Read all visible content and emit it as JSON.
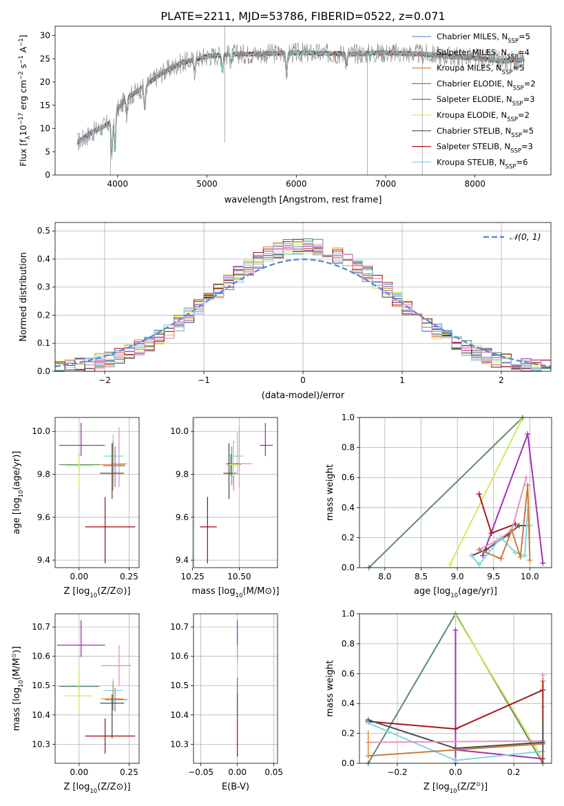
{
  "figure_title": "PLATE=2211, MJD=53786, FIBERID=0522, z=0.071",
  "colors": {
    "cm": "#6A8DD9",
    "sm": "#A2A2A2",
    "km": "#E08A2C",
    "ce": "#5E8A6A",
    "se": "#9C2FB0",
    "ke": "#D6E75C",
    "cs": "#4A4A4A",
    "ss": "#A8161A",
    "ks": "#7FD6E2",
    "pink": "#EC8FC0",
    "orange": "#C97A3A",
    "gaussian": "#5B8AD6"
  },
  "legend_models": [
    {
      "key": "cm",
      "prefix": "Chabrier MILES, N",
      "sub": "SSP",
      "suffix": "=5"
    },
    {
      "key": "sm",
      "prefix": "Salpeter MILES, N",
      "sub": "SSP",
      "suffix": "=4"
    },
    {
      "key": "km",
      "prefix": "Kroupa MILES, N",
      "sub": "SSP",
      "suffix": "=5"
    },
    {
      "key": "ce",
      "prefix": "Chabrier ELODIE, N",
      "sub": "SSP",
      "suffix": "=2"
    },
    {
      "key": "se",
      "prefix": "Salpeter ELODIE, N",
      "sub": "SSP",
      "suffix": "=3"
    },
    {
      "key": "ke",
      "prefix": "Kroupa ELODIE, N",
      "sub": "SSP",
      "suffix": "=2"
    },
    {
      "key": "cs",
      "prefix": "Chabrier STELIB, N",
      "sub": "SSP",
      "suffix": "=5"
    },
    {
      "key": "ss",
      "prefix": "Salpeter STELIB, N",
      "sub": "SSP",
      "suffix": "=3"
    },
    {
      "key": "ks",
      "prefix": "Kroupa STELIB, N",
      "sub": "SSP",
      "suffix": "=6"
    }
  ],
  "chart_data": [
    {
      "type": "line",
      "panel": "spectrum",
      "xlabel": "wavelength [Angstrom, rest frame]",
      "ylabel_parts": [
        "Flux [f",
        "λ",
        "10",
        "−17",
        " erg cm",
        "−2",
        " s",
        "−1",
        " A",
        "−1",
        "]"
      ],
      "xlim": [
        3300,
        8850
      ],
      "ylim": [
        0,
        32
      ],
      "xticks": [
        4000,
        5000,
        6000,
        7000,
        8000
      ],
      "yticks": [
        0,
        5,
        10,
        15,
        20,
        25,
        30
      ],
      "grid": false,
      "legend": "top-right",
      "continuum": {
        "x": [
          3550,
          3700,
          3900,
          4000,
          4100,
          4300,
          4500,
          4700,
          5000,
          5300,
          5600,
          5900,
          6200,
          6600,
          7000,
          7400,
          7700,
          8000,
          8300,
          8550
        ],
        "y": [
          7,
          9,
          11,
          14,
          16.5,
          19,
          22,
          24,
          25.5,
          26,
          26,
          26.3,
          26.2,
          26,
          26.3,
          26,
          25.5,
          25.2,
          24.5,
          24.8
        ]
      },
      "x_range": [
        3550,
        8550
      ]
    },
    {
      "type": "histogram",
      "panel": "residuals",
      "xlabel": "(data-model)/error",
      "ylabel": "Normed distribution",
      "xlim": [
        -2.5,
        2.5
      ],
      "ylim": [
        0,
        0.53
      ],
      "xticks": [
        -2,
        -1,
        0,
        1,
        2
      ],
      "yticks": [
        0.0,
        0.1,
        0.2,
        0.3,
        0.4,
        0.5
      ],
      "grid": true,
      "legend": "top-right",
      "gaussian_label": "𝒩(0, 1)",
      "bin_width": 0.1
    },
    {
      "type": "errorbar",
      "panel": "Z-age",
      "xlabel_parts": [
        "Z [log",
        "10",
        "(Z/Z",
        "⊙",
        ")]"
      ],
      "ylabel_parts": [
        "age  [log",
        "10",
        "(age/yr)]"
      ],
      "xlim": [
        -0.12,
        0.3
      ],
      "ylim": [
        9.365,
        10.065
      ],
      "xticks": [
        0.0,
        0.25
      ],
      "yticks": [
        9.4,
        9.6,
        9.8,
        10.0
      ],
      "grid": true,
      "points": [
        {
          "c": "se",
          "x": 0.01,
          "xe": [
            0.11,
            0.12
          ],
          "y": 9.935,
          "ye": [
            0.05,
            0.105
          ]
        },
        {
          "c": "pink",
          "x": 0.2,
          "xe": [
            0.04,
            0.04
          ],
          "y": 9.85,
          "ye": [
            0.11,
            0.17
          ]
        },
        {
          "c": "ks",
          "x": 0.17,
          "xe": [
            0.05,
            0.05
          ],
          "y": 9.885,
          "ye": [
            0.09,
            0.1
          ]
        },
        {
          "c": "km",
          "x": 0.17,
          "xe": [
            0.07,
            0.06
          ],
          "y": 9.845,
          "ye": [
            0.12,
            0.11
          ]
        },
        {
          "c": "cm",
          "x": 0.18,
          "xe": [
            0.06,
            0.05
          ],
          "y": 9.84,
          "ye": [
            0.1,
            0.09
          ]
        },
        {
          "c": "cs",
          "x": 0.165,
          "xe": [
            0.06,
            0.06
          ],
          "y": 9.805,
          "ye": [
            0.12,
            0.14
          ]
        },
        {
          "c": "ce",
          "x": 0.0,
          "xe": [
            0.1,
            0.1
          ],
          "y": 9.845,
          "ye": [
            0.05,
            0.05
          ]
        },
        {
          "c": "ke",
          "x": 0.0,
          "xe": [
            0.07,
            0.07
          ],
          "y": 9.84,
          "ye": [
            0.1,
            0.05
          ]
        },
        {
          "c": "ss",
          "x": 0.13,
          "xe": [
            0.1,
            0.15
          ],
          "y": 9.555,
          "ye": [
            0.17,
            0.14
          ]
        }
      ]
    },
    {
      "type": "errorbar",
      "panel": "mass-age",
      "xlabel_parts": [
        "mass [log",
        "10",
        "(M/M",
        "⊙",
        ")]"
      ],
      "ylabel_parts": [],
      "xlim": [
        10.255,
        10.705
      ],
      "ylim": [
        9.365,
        10.065
      ],
      "xticks": [
        10.25,
        10.5
      ],
      "yticks": [
        9.4,
        9.6,
        9.8,
        10.0
      ],
      "grid": true,
      "points": [
        {
          "c": "se",
          "x": 10.64,
          "xe": [
            0.03,
            0.04
          ],
          "y": 9.935,
          "ye": [
            0.05,
            0.105
          ]
        },
        {
          "c": "pink",
          "x": 10.5,
          "xe": [
            0.07,
            0.07
          ],
          "y": 9.85,
          "ye": [
            0.11,
            0.17
          ]
        },
        {
          "c": "ks",
          "x": 10.49,
          "xe": [
            0.03,
            0.03
          ],
          "y": 9.885,
          "ye": [
            0.09,
            0.11
          ]
        },
        {
          "c": "km",
          "x": 10.47,
          "xe": [
            0.03,
            0.04
          ],
          "y": 9.845,
          "ye": [
            0.12,
            0.11
          ]
        },
        {
          "c": "cm",
          "x": 10.46,
          "xe": [
            0.03,
            0.04
          ],
          "y": 9.85,
          "ye": [
            0.1,
            0.08
          ]
        },
        {
          "c": "cs",
          "x": 10.445,
          "xe": [
            0.03,
            0.04
          ],
          "y": 9.805,
          "ye": [
            0.12,
            0.14
          ]
        },
        {
          "c": "ce",
          "x": 10.455,
          "xe": [
            0.02,
            0.03
          ],
          "y": 9.845,
          "ye": [
            0.05,
            0.05
          ]
        },
        {
          "c": "ke",
          "x": 10.47,
          "xe": [
            0.03,
            0.03
          ],
          "y": 9.845,
          "ye": [
            0.05,
            0.1
          ]
        },
        {
          "c": "ss",
          "x": 10.33,
          "xe": [
            0.04,
            0.05
          ],
          "y": 9.555,
          "ye": [
            0.17,
            0.14
          ]
        }
      ]
    },
    {
      "type": "line",
      "panel": "age-weight",
      "xlabel_parts": [
        "age  [log",
        "10",
        "(age/yr)]"
      ],
      "ylabel": "mass weight",
      "xlim": [
        7.65,
        10.3
      ],
      "ylim": [
        0,
        1.0
      ],
      "xticks": [
        8.0,
        8.5,
        9.0,
        9.5,
        10.0
      ],
      "yticks": [
        0.0,
        0.2,
        0.4,
        0.6,
        0.8,
        1.0
      ],
      "grid": true,
      "series": [
        {
          "c": "ce",
          "x": [
            7.78,
            9.9
          ],
          "y": [
            0.0,
            1.0
          ]
        },
        {
          "c": "ke",
          "x": [
            8.9,
            9.88
          ],
          "y": [
            0.02,
            0.98
          ]
        },
        {
          "c": "se",
          "x": [
            9.35,
            9.97,
            10.18
          ],
          "y": [
            0.08,
            0.89,
            0.03
          ]
        },
        {
          "c": "ss",
          "x": [
            9.3,
            9.47,
            9.8
          ],
          "y": [
            0.49,
            0.23,
            0.29
          ]
        },
        {
          "c": "cs",
          "x": [
            9.2,
            9.4,
            9.7,
            9.85,
            10.0
          ],
          "y": [
            0.08,
            0.12,
            0.22,
            0.28,
            0.28
          ]
        },
        {
          "c": "pink",
          "x": [
            9.3,
            9.55,
            9.75,
            9.95
          ],
          "y": [
            0.12,
            0.18,
            0.25,
            0.6
          ]
        },
        {
          "c": "ks",
          "x": [
            9.2,
            9.3,
            9.6,
            9.8,
            9.93,
            9.97,
            10.0
          ],
          "y": [
            0.08,
            0.02,
            0.2,
            0.1,
            0.08,
            0.38,
            0.28
          ]
        },
        {
          "c": "orange",
          "x": [
            9.3,
            9.6,
            9.75,
            9.87,
            9.97,
            10.0
          ],
          "y": [
            0.12,
            0.06,
            0.25,
            0.07,
            0.55,
            0.05
          ]
        }
      ]
    },
    {
      "type": "errorbar",
      "panel": "Z-mass",
      "xlabel_parts": [
        "Z [log",
        "10",
        "(Z/Z",
        "⊙",
        ")]"
      ],
      "ylabel_parts": [
        "mass [log",
        "10",
        "(M/M",
        "⊙",
        ")]"
      ],
      "xlim": [
        -0.12,
        0.3
      ],
      "ylim": [
        10.235,
        10.745
      ],
      "xticks": [
        0.0,
        0.25
      ],
      "yticks": [
        10.3,
        10.4,
        10.5,
        10.6,
        10.7
      ],
      "grid": true,
      "points": [
        {
          "c": "se",
          "x": 0.01,
          "xe": [
            0.12,
            0.12
          ],
          "y": 10.638,
          "ye": [
            0.04,
            0.085
          ]
        },
        {
          "c": "pink",
          "x": 0.2,
          "xe": [
            0.09,
            0.06
          ],
          "y": 10.568,
          "ye": [
            0.07,
            0.07
          ]
        },
        {
          "c": "ks",
          "x": 0.17,
          "xe": [
            0.05,
            0.05
          ],
          "y": 10.483,
          "ye": [
            0.03,
            0.04
          ]
        },
        {
          "c": "km",
          "x": 0.17,
          "xe": [
            0.06,
            0.05
          ],
          "y": 10.455,
          "ye": [
            0.04,
            0.06
          ]
        },
        {
          "c": "cm",
          "x": 0.18,
          "xe": [
            0.05,
            0.06
          ],
          "y": 10.452,
          "ye": [
            0.04,
            0.04
          ]
        },
        {
          "c": "cs",
          "x": 0.165,
          "xe": [
            0.06,
            0.06
          ],
          "y": 10.44,
          "ye": [
            0.12,
            0.03
          ]
        },
        {
          "c": "ce",
          "x": 0.0,
          "xe": [
            0.1,
            0.1
          ],
          "y": 10.497,
          "ye": [
            0.03,
            0.03
          ]
        },
        {
          "c": "ke",
          "x": 0.0,
          "xe": [
            0.07,
            0.07
          ],
          "y": 10.465,
          "ye": [
            0.05,
            0.1
          ]
        },
        {
          "c": "ss",
          "x": 0.13,
          "xe": [
            0.1,
            0.15
          ],
          "y": 10.328,
          "ye": [
            0.06,
            0.06
          ]
        }
      ]
    },
    {
      "type": "errorbar",
      "panel": "EBV-mass",
      "xlabel": "E(B-V)",
      "xlim": [
        -0.06,
        0.055
      ],
      "ylim": [
        10.235,
        10.745
      ],
      "xticks": [
        -0.05,
        0.0,
        0.05
      ],
      "xtick_labels": [
        "−0.05",
        "0.00",
        "0.05"
      ],
      "yticks": [
        10.3,
        10.4,
        10.5,
        10.6,
        10.7
      ],
      "grid": true,
      "points": [
        {
          "c": "se",
          "x": 0.0,
          "xe": [
            0,
            0
          ],
          "y": 10.638,
          "ye": [
            0.04,
            0.085
          ]
        },
        {
          "c": "pink",
          "x": 0.0,
          "xe": [
            0,
            0
          ],
          "y": 10.568,
          "ye": [
            0.07,
            0.07
          ]
        },
        {
          "c": "ks",
          "x": 0.0,
          "xe": [
            0,
            0
          ],
          "y": 10.483,
          "ye": [
            0.03,
            0.04
          ]
        },
        {
          "c": "ke",
          "x": 0.0,
          "xe": [
            0,
            0
          ],
          "y": 10.54,
          "ye": [
            0.04,
            0.04
          ]
        },
        {
          "c": "ce",
          "x": 0.0,
          "xe": [
            0,
            0
          ],
          "y": 10.497,
          "ye": [
            0.03,
            0.03
          ]
        },
        {
          "c": "cs",
          "x": 0.0,
          "xe": [
            0,
            0
          ],
          "y": 10.44,
          "ye": [
            0.05,
            0.03
          ]
        },
        {
          "c": "ss",
          "x": 0.0,
          "xe": [
            0,
            0
          ],
          "y": 10.328,
          "ye": [
            0.07,
            0.06
          ]
        }
      ]
    },
    {
      "type": "line",
      "panel": "Z-weight",
      "xlabel_parts": [
        "Z [log",
        "10",
        "(Z/Z",
        "⊙",
        ")]"
      ],
      "ylabel": "mass weight",
      "xlim": [
        -0.33,
        0.33
      ],
      "ylim": [
        0,
        1.0
      ],
      "xticks": [
        -0.2,
        0.0,
        0.2
      ],
      "xtick_labels": [
        "−0.2",
        "0.0",
        "0.2"
      ],
      "yticks": [
        0.0,
        0.2,
        0.4,
        0.6,
        0.8,
        1.0
      ],
      "grid": true,
      "series": [
        {
          "c": "ce",
          "x": [
            -0.3,
            0.0,
            0.3
          ],
          "y": [
            0.0,
            1.0,
            0.0
          ]
        },
        {
          "c": "ke",
          "x": [
            0.0,
            0.3
          ],
          "y": [
            0.99,
            0.03
          ]
        },
        {
          "c": "se",
          "x": [
            0.0,
            0.0,
            0.0,
            0.3
          ],
          "y": [
            0.0,
            0.89,
            0.09,
            0.03
          ]
        },
        {
          "c": "ss",
          "x": [
            -0.3,
            0.0,
            0.3
          ],
          "y": [
            0.28,
            0.23,
            0.49
          ]
        },
        {
          "c": "cs",
          "x": [
            -0.3,
            0.0,
            0.3
          ],
          "y": [
            0.29,
            0.1,
            0.14
          ]
        },
        {
          "c": "ks",
          "x": [
            -0.3,
            0.0,
            0.3,
            0.3
          ],
          "y": [
            0.27,
            0.02,
            0.08,
            0.38
          ]
        },
        {
          "c": "pink",
          "x": [
            -0.3,
            0.3,
            0.3
          ],
          "y": [
            0.14,
            0.15,
            0.59
          ]
        },
        {
          "c": "orange",
          "x": [
            -0.3,
            0.3,
            0.3
          ],
          "y": [
            0.05,
            0.13,
            0.55
          ]
        }
      ],
      "vertical_bars": [
        {
          "c": "ss",
          "x": 0.3,
          "y": [
            0.0,
            0.55
          ]
        },
        {
          "c": "km",
          "x": -0.3,
          "y": [
            0.05,
            0.22
          ]
        },
        {
          "c": "cs",
          "x": 0.3,
          "y": [
            0.05,
            0.3
          ]
        }
      ]
    }
  ]
}
